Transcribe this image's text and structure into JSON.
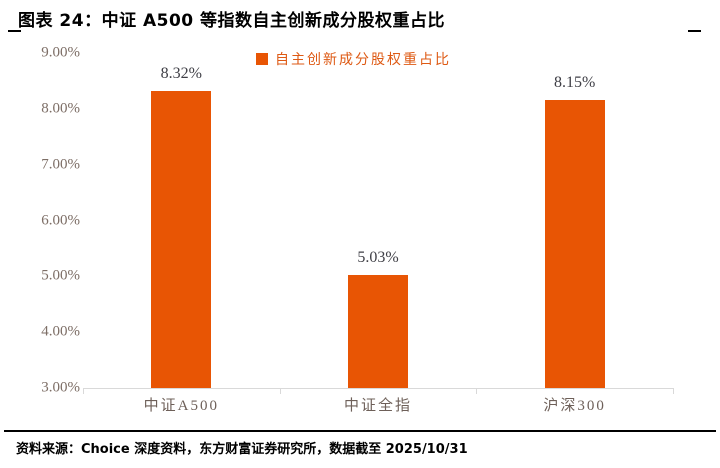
{
  "title": "图表 24：中证 A500 等指数自主创新成分股权重占比",
  "legend": {
    "label": "自主创新成分股权重占比",
    "swatch_color": "#E85504"
  },
  "footer": {
    "source": "资料来源：Choice 深度资料，东方财富证券研究所，数据截至 2025/10/31"
  },
  "colors": {
    "bar": "#E85504",
    "legend_text": "#DE5A14",
    "axis_label": "#7D6E66",
    "category_label": "#6E6059",
    "data_label": "#3F3F46",
    "axis_line": "#D9D9D9",
    "title_text": "#000000"
  },
  "chart_data": {
    "type": "bar",
    "title": "图表 24：中证 A500 等指数自主创新成分股权重占比",
    "categories": [
      "中证A500",
      "中证全指",
      "沪深300"
    ],
    "values": [
      8.32,
      5.03,
      8.15
    ],
    "data_labels": [
      "8.32%",
      "5.03%",
      "8.15%"
    ],
    "series_name": "自主创新成分股权重占比",
    "xlabel": "",
    "ylabel": "",
    "ylim": [
      3,
      9
    ],
    "ytick_step": 1,
    "ytick_labels": [
      "9.00%",
      "8.00%",
      "7.00%",
      "6.00%",
      "5.00%",
      "4.00%",
      "3.00%"
    ],
    "grid": false,
    "legend_position": "top-center"
  }
}
